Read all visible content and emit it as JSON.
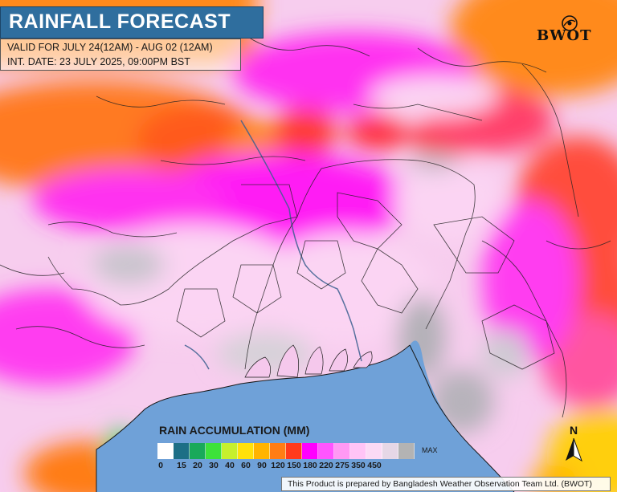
{
  "header": {
    "title": "RAINFALL FORECAST",
    "valid_line": "VALID FOR JULY 24(12AM) - AUG 02 (12AM)",
    "init_line": "INT. DATE: 23 JULY 2025, 09:00PM BST"
  },
  "logo": {
    "text": "BWOT"
  },
  "legend": {
    "title": "RAIN ACCUMULATION (MM)",
    "max_label": "MAX",
    "colors": [
      "#ffffff",
      "#1d6f86",
      "#19a95a",
      "#3de23a",
      "#c6f02d",
      "#ffe10a",
      "#ffb400",
      "#ff7d14",
      "#ff3a1c",
      "#ff00ff",
      "#ff55ff",
      "#ff99f4",
      "#ffc4f6",
      "#fbdaf5",
      "#e6d7e6",
      "#b3b3b3"
    ],
    "ticks": [
      "0",
      "15",
      "20",
      "30",
      "40",
      "60",
      "90",
      "120",
      "150",
      "180",
      "220",
      "275",
      "350",
      "450"
    ]
  },
  "compass": {
    "north_label": "N"
  },
  "footer": {
    "credit": "This Product is prepared by Bangladesh Weather Observation Team Ltd. (BWOT)"
  }
}
